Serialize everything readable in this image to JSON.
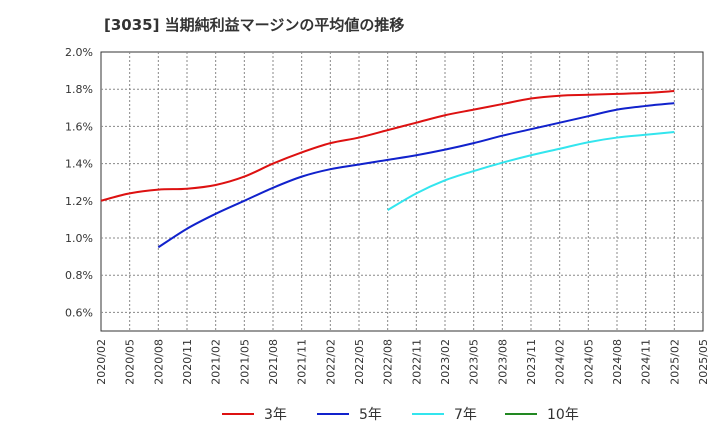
{
  "chart_data": {
    "type": "line",
    "title": "[3035]  当期純利益マージンの平均値の推移",
    "xlabel": "",
    "ylabel": "",
    "x": [
      "2020/02",
      "2020/05",
      "2020/08",
      "2020/11",
      "2021/02",
      "2021/05",
      "2021/08",
      "2021/11",
      "2022/02",
      "2022/05",
      "2022/08",
      "2022/11",
      "2023/02",
      "2023/05",
      "2023/08",
      "2023/11",
      "2024/02",
      "2024/05",
      "2024/08",
      "2024/11",
      "2025/02",
      "2025/05"
    ],
    "yticks": [
      "0.6%",
      "0.8%",
      "1.0%",
      "1.2%",
      "1.4%",
      "1.6%",
      "1.8%",
      "2.0%"
    ],
    "ylim": [
      0.5,
      2.0
    ],
    "grid": true,
    "legend_position": "bottom",
    "series": [
      {
        "name": "3年",
        "color": "#dd1111",
        "values": [
          1.2,
          1.24,
          1.26,
          1.265,
          1.285,
          1.33,
          1.4,
          1.46,
          1.51,
          1.54,
          1.58,
          1.62,
          1.66,
          1.69,
          1.72,
          1.75,
          1.765,
          1.77,
          1.775,
          1.78,
          1.79,
          null
        ]
      },
      {
        "name": "5年",
        "color": "#1122cc",
        "values": [
          null,
          null,
          0.95,
          1.05,
          1.13,
          1.2,
          1.27,
          1.33,
          1.37,
          1.395,
          1.42,
          1.445,
          1.475,
          1.51,
          1.55,
          1.585,
          1.62,
          1.655,
          1.69,
          1.71,
          1.725,
          null
        ]
      },
      {
        "name": "7年",
        "color": "#33e5ee",
        "values": [
          null,
          null,
          null,
          null,
          null,
          null,
          null,
          null,
          null,
          null,
          1.15,
          1.24,
          1.31,
          1.36,
          1.405,
          1.445,
          1.48,
          1.515,
          1.54,
          1.555,
          1.57,
          null
        ]
      },
      {
        "name": "10年",
        "color": "#228822",
        "values": [
          null,
          null,
          null,
          null,
          null,
          null,
          null,
          null,
          null,
          null,
          null,
          null,
          null,
          null,
          null,
          null,
          null,
          null,
          null,
          null,
          null,
          null
        ]
      }
    ]
  }
}
